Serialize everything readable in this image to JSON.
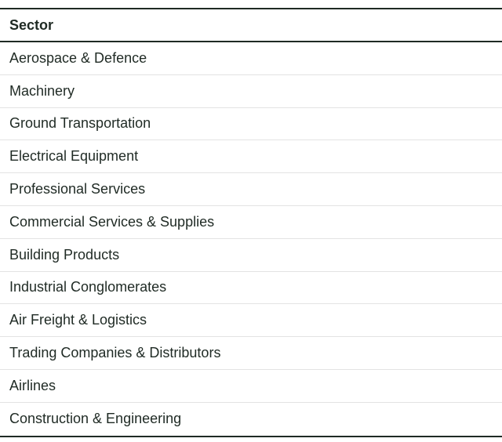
{
  "table": {
    "header": "Sector",
    "rows": [
      "Aerospace & Defence",
      "Machinery",
      "Ground Transportation",
      "Electrical Equipment",
      "Professional Services",
      "Commercial Services & Supplies",
      "Building Products",
      "Industrial Conglomerates",
      "Air Freight & Logistics",
      "Trading Companies & Distributors",
      "Airlines",
      "Construction & Engineering"
    ]
  }
}
